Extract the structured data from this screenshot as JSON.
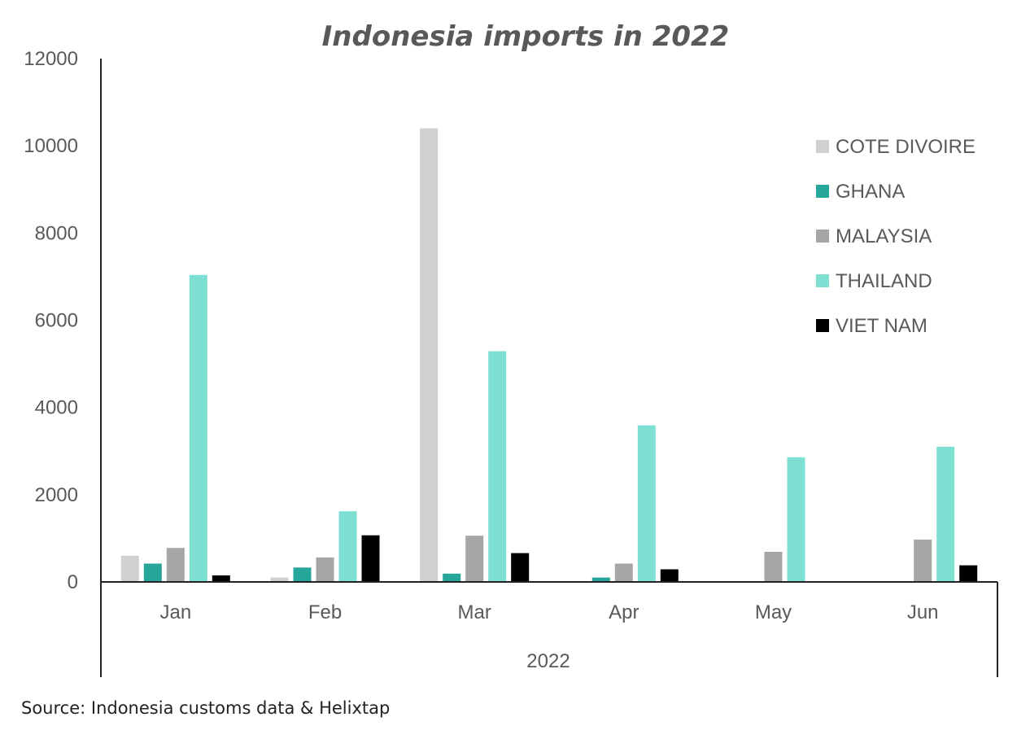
{
  "source_text": "Source: Indonesia customs data & Helixtap",
  "chart_data": {
    "type": "bar",
    "title": "Indonesia imports in 2022",
    "xlabel": "",
    "ylabel": "",
    "group_label": "2022",
    "categories": [
      "Jan",
      "Feb",
      "Mar",
      "Apr",
      "May",
      "Jun"
    ],
    "ylim": [
      0,
      12000
    ],
    "yticks": [
      0,
      2000,
      4000,
      6000,
      8000,
      10000,
      12000
    ],
    "grid": false,
    "legend_position": "top-right",
    "series": [
      {
        "name": "COTE DIVOIRE",
        "color": "#d0d0d0",
        "values": [
          600,
          100,
          10400,
          0,
          0,
          0
        ]
      },
      {
        "name": "GHANA",
        "color": "#26a69a",
        "values": [
          420,
          330,
          190,
          100,
          0,
          0
        ]
      },
      {
        "name": "MALAYSIA",
        "color": "#a6a6a6",
        "values": [
          780,
          560,
          1060,
          420,
          690,
          970
        ]
      },
      {
        "name": "THAILAND",
        "color": "#7ee0d2",
        "values": [
          7040,
          1620,
          5290,
          3590,
          2860,
          3100
        ]
      },
      {
        "name": "VIET NAM",
        "color": "#000000",
        "values": [
          150,
          1070,
          660,
          290,
          0,
          380
        ]
      }
    ]
  }
}
